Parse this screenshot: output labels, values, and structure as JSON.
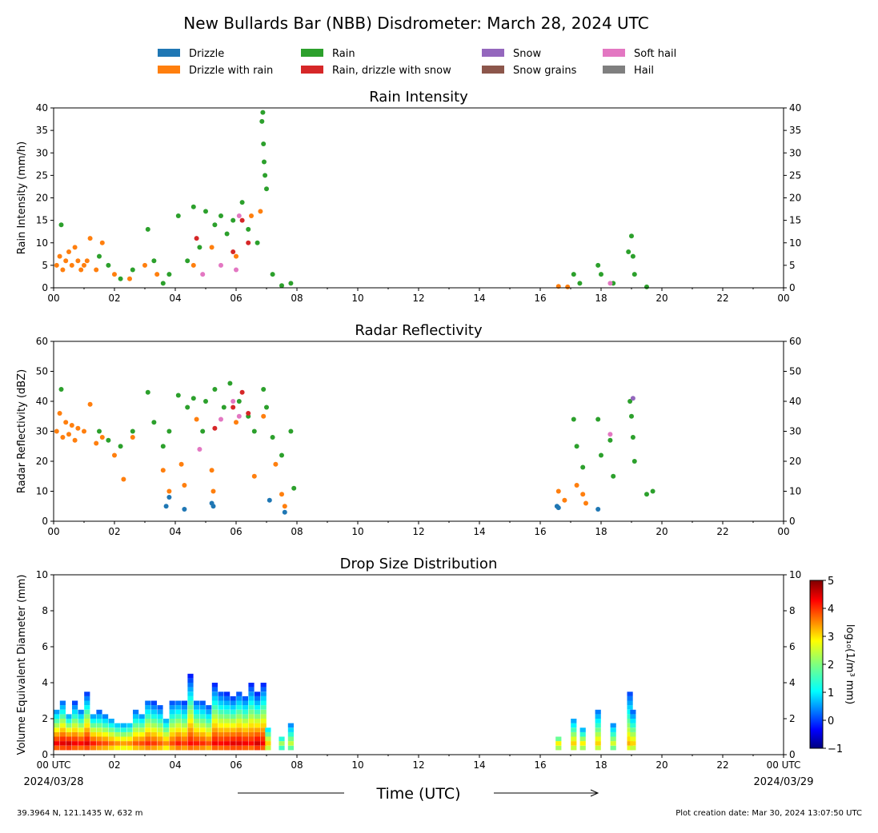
{
  "figure": {
    "title": "New Bullards Bar (NBB) Disdrometer: March 28, 2024 UTC",
    "xlabel": "Time (UTC)",
    "footer_left": "39.3964 N, 121.1435 W, 632 m",
    "footer_right": "Plot creation date: Mar 30, 2024 13:07:50 UTC",
    "date_start": "2024/03/28",
    "date_end": "2024/03/29"
  },
  "legend": [
    {
      "name": "Drizzle",
      "color": "#1f77b4"
    },
    {
      "name": "Drizzle with rain",
      "color": "#ff7f0e"
    },
    {
      "name": "Rain",
      "color": "#2ca02c"
    },
    {
      "name": "Rain, drizzle with snow",
      "color": "#d62728"
    },
    {
      "name": "Snow",
      "color": "#9467bd"
    },
    {
      "name": "Snow grains",
      "color": "#8c564b"
    },
    {
      "name": "Soft hail",
      "color": "#e377c2"
    },
    {
      "name": "Hail",
      "color": "#7f7f7f"
    }
  ],
  "x_ticks": [
    "00",
    "02",
    "04",
    "06",
    "08",
    "10",
    "12",
    "14",
    "16",
    "18",
    "20",
    "22",
    "00"
  ],
  "x_ticks_bottom": [
    "00 UTC",
    "02",
    "04",
    "06",
    "08",
    "10",
    "12",
    "14",
    "16",
    "18",
    "20",
    "22",
    "00 UTC"
  ],
  "chart_data": [
    {
      "type": "scatter",
      "title": "Rain Intensity",
      "ylabel": "Rain Intensity (mm/h)",
      "xlim": [
        0,
        24
      ],
      "ylim": [
        0,
        40
      ],
      "y_ticks": [
        0,
        5,
        10,
        15,
        20,
        25,
        30,
        35,
        40
      ],
      "legend_position": "top-center",
      "series": [
        {
          "name": "Drizzle with rain",
          "color": "#ff7f0e",
          "points": [
            [
              0.1,
              5
            ],
            [
              0.2,
              7
            ],
            [
              0.3,
              4
            ],
            [
              0.4,
              6
            ],
            [
              0.5,
              8
            ],
            [
              0.6,
              5
            ],
            [
              0.7,
              9
            ],
            [
              0.8,
              6
            ],
            [
              0.9,
              4
            ],
            [
              1.0,
              5
            ],
            [
              1.1,
              6
            ],
            [
              1.2,
              11
            ],
            [
              1.4,
              4
            ],
            [
              1.6,
              10
            ],
            [
              2.0,
              3
            ],
            [
              2.5,
              2
            ],
            [
              3.0,
              5
            ],
            [
              3.4,
              3
            ],
            [
              4.6,
              5
            ],
            [
              5.2,
              9
            ],
            [
              6.0,
              7
            ],
            [
              6.5,
              16
            ],
            [
              6.8,
              17
            ],
            [
              16.6,
              0.3
            ],
            [
              16.9,
              0.2
            ]
          ]
        },
        {
          "name": "Rain",
          "color": "#2ca02c",
          "points": [
            [
              0.25,
              14
            ],
            [
              1.5,
              7
            ],
            [
              1.8,
              5
            ],
            [
              2.2,
              2
            ],
            [
              2.6,
              4
            ],
            [
              3.1,
              13
            ],
            [
              3.3,
              6
            ],
            [
              3.6,
              1
            ],
            [
              3.8,
              3
            ],
            [
              4.1,
              16
            ],
            [
              4.4,
              6
            ],
            [
              4.6,
              18
            ],
            [
              4.8,
              9
            ],
            [
              5.0,
              17
            ],
            [
              5.3,
              14
            ],
            [
              5.5,
              16
            ],
            [
              5.7,
              12
            ],
            [
              5.9,
              15
            ],
            [
              6.2,
              19
            ],
            [
              6.4,
              13
            ],
            [
              6.7,
              10
            ],
            [
              6.85,
              37
            ],
            [
              6.88,
              39
            ],
            [
              6.9,
              32
            ],
            [
              6.92,
              28
            ],
            [
              6.95,
              25
            ],
            [
              7.0,
              22
            ],
            [
              7.2,
              3
            ],
            [
              7.5,
              0.5
            ],
            [
              7.8,
              1
            ],
            [
              17.1,
              3
            ],
            [
              17.3,
              1
            ],
            [
              17.9,
              5
            ],
            [
              18.0,
              3
            ],
            [
              18.4,
              1
            ],
            [
              18.9,
              8
            ],
            [
              19.0,
              11.5
            ],
            [
              19.05,
              7
            ],
            [
              19.1,
              3
            ],
            [
              19.5,
              0.2
            ]
          ]
        },
        {
          "name": "Rain, drizzle with snow",
          "color": "#d62728",
          "points": [
            [
              4.7,
              11
            ],
            [
              5.9,
              8
            ],
            [
              6.2,
              15
            ],
            [
              6.4,
              10
            ]
          ]
        },
        {
          "name": "Soft hail",
          "color": "#e377c2",
          "points": [
            [
              4.9,
              3
            ],
            [
              5.5,
              5
            ],
            [
              6.0,
              4
            ],
            [
              6.1,
              16
            ],
            [
              18.3,
              1
            ]
          ]
        }
      ]
    },
    {
      "type": "scatter",
      "title": "Radar Reflectivity",
      "ylabel": "Radar Reflectivity (dBZ)",
      "xlim": [
        0,
        24
      ],
      "ylim": [
        0,
        60
      ],
      "y_ticks": [
        0,
        10,
        20,
        30,
        40,
        50,
        60
      ],
      "series": [
        {
          "name": "Drizzle",
          "color": "#1f77b4",
          "points": [
            [
              3.7,
              5
            ],
            [
              3.8,
              8
            ],
            [
              4.3,
              4
            ],
            [
              5.2,
              6
            ],
            [
              5.25,
              5
            ],
            [
              7.1,
              7
            ],
            [
              7.6,
              3
            ],
            [
              16.55,
              5
            ],
            [
              16.6,
              4.5
            ],
            [
              17.9,
              4
            ]
          ]
        },
        {
          "name": "Drizzle with rain",
          "color": "#ff7f0e",
          "points": [
            [
              0.1,
              30
            ],
            [
              0.2,
              36
            ],
            [
              0.3,
              28
            ],
            [
              0.4,
              33
            ],
            [
              0.5,
              29
            ],
            [
              0.6,
              32
            ],
            [
              0.7,
              27
            ],
            [
              0.8,
              31
            ],
            [
              1.0,
              30
            ],
            [
              1.2,
              39
            ],
            [
              1.4,
              26
            ],
            [
              1.6,
              28
            ],
            [
              2.0,
              22
            ],
            [
              2.3,
              14
            ],
            [
              2.6,
              28
            ],
            [
              3.6,
              17
            ],
            [
              3.8,
              10
            ],
            [
              4.2,
              19
            ],
            [
              4.3,
              12
            ],
            [
              4.7,
              34
            ],
            [
              5.2,
              17
            ],
            [
              5.25,
              10
            ],
            [
              6.0,
              33
            ],
            [
              6.6,
              15
            ],
            [
              6.9,
              35
            ],
            [
              7.3,
              19
            ],
            [
              7.5,
              9
            ],
            [
              7.6,
              5
            ],
            [
              16.6,
              10
            ],
            [
              16.8,
              7
            ],
            [
              17.2,
              12
            ],
            [
              17.4,
              9
            ],
            [
              17.5,
              6
            ]
          ]
        },
        {
          "name": "Rain",
          "color": "#2ca02c",
          "points": [
            [
              0.25,
              44
            ],
            [
              1.5,
              30
            ],
            [
              1.8,
              27
            ],
            [
              2.2,
              25
            ],
            [
              2.6,
              30
            ],
            [
              3.1,
              43
            ],
            [
              3.3,
              33
            ],
            [
              3.6,
              25
            ],
            [
              3.8,
              30
            ],
            [
              4.1,
              42
            ],
            [
              4.4,
              38
            ],
            [
              4.6,
              41
            ],
            [
              4.9,
              30
            ],
            [
              5.0,
              40
            ],
            [
              5.3,
              44
            ],
            [
              5.6,
              38
            ],
            [
              5.8,
              46
            ],
            [
              6.1,
              40
            ],
            [
              6.4,
              35
            ],
            [
              6.6,
              30
            ],
            [
              6.9,
              44
            ],
            [
              7.0,
              38
            ],
            [
              7.2,
              28
            ],
            [
              7.5,
              22
            ],
            [
              7.8,
              30
            ],
            [
              7.9,
              11
            ],
            [
              17.1,
              34
            ],
            [
              17.2,
              25
            ],
            [
              17.4,
              18
            ],
            [
              17.9,
              34
            ],
            [
              18.0,
              22
            ],
            [
              18.3,
              27
            ],
            [
              18.4,
              15
            ],
            [
              18.95,
              40
            ],
            [
              19.0,
              35
            ],
            [
              19.05,
              28
            ],
            [
              19.1,
              20
            ],
            [
              19.5,
              9
            ],
            [
              19.7,
              10
            ]
          ]
        },
        {
          "name": "Rain, drizzle with snow",
          "color": "#d62728",
          "points": [
            [
              5.3,
              31
            ],
            [
              5.9,
              38
            ],
            [
              6.2,
              43
            ],
            [
              6.4,
              36
            ]
          ]
        },
        {
          "name": "Soft hail",
          "color": "#e377c2",
          "points": [
            [
              4.8,
              24
            ],
            [
              5.5,
              34
            ],
            [
              5.9,
              40
            ],
            [
              6.1,
              35
            ],
            [
              18.3,
              29
            ]
          ]
        },
        {
          "name": "Snow",
          "color": "#9467bd",
          "points": [
            [
              19.05,
              41
            ]
          ]
        }
      ]
    },
    {
      "type": "heatmap",
      "title": "Drop Size Distribution",
      "ylabel": "Volume Equivalent Diameter (mm)",
      "xlim": [
        0,
        24
      ],
      "ylim": [
        0,
        10
      ],
      "y_ticks": [
        0,
        2,
        4,
        6,
        8,
        10
      ],
      "colorbar": {
        "label": "log₁₀(1/m³ mm)",
        "range": [
          -1,
          5
        ],
        "ticks": [
          -1,
          0,
          1,
          2,
          3,
          4,
          5
        ]
      },
      "columns": [
        {
          "x": 0.1,
          "top": 2.5,
          "peak": 4.3
        },
        {
          "x": 0.3,
          "top": 3.0,
          "peak": 4.4
        },
        {
          "x": 0.5,
          "top": 2.2,
          "peak": 4.5
        },
        {
          "x": 0.7,
          "top": 2.8,
          "peak": 4.3
        },
        {
          "x": 0.9,
          "top": 2.4,
          "peak": 4.2
        },
        {
          "x": 1.1,
          "top": 3.4,
          "peak": 4.4
        },
        {
          "x": 1.3,
          "top": 2.2,
          "peak": 4.1
        },
        {
          "x": 1.5,
          "top": 2.3,
          "peak": 3.9
        },
        {
          "x": 1.7,
          "top": 2.1,
          "peak": 3.8
        },
        {
          "x": 1.9,
          "top": 1.9,
          "peak": 3.6
        },
        {
          "x": 2.1,
          "top": 1.7,
          "peak": 3.4
        },
        {
          "x": 2.3,
          "top": 1.6,
          "peak": 3.3
        },
        {
          "x": 2.5,
          "top": 1.7,
          "peak": 3.4
        },
        {
          "x": 2.7,
          "top": 2.4,
          "peak": 3.7
        },
        {
          "x": 2.9,
          "top": 2.2,
          "peak": 3.8
        },
        {
          "x": 3.1,
          "top": 3.0,
          "peak": 4.0
        },
        {
          "x": 3.3,
          "top": 2.8,
          "peak": 3.9
        },
        {
          "x": 3.5,
          "top": 2.6,
          "peak": 3.7
        },
        {
          "x": 3.7,
          "top": 2.0,
          "peak": 3.4
        },
        {
          "x": 3.9,
          "top": 2.9,
          "peak": 3.8
        },
        {
          "x": 4.1,
          "top": 3.0,
          "peak": 4.1
        },
        {
          "x": 4.3,
          "top": 2.8,
          "peak": 3.9
        },
        {
          "x": 4.5,
          "top": 4.4,
          "peak": 4.2
        },
        {
          "x": 4.7,
          "top": 3.0,
          "peak": 4.1
        },
        {
          "x": 4.9,
          "top": 2.9,
          "peak": 4.0
        },
        {
          "x": 5.1,
          "top": 2.6,
          "peak": 3.8
        },
        {
          "x": 5.3,
          "top": 3.9,
          "peak": 4.3
        },
        {
          "x": 5.5,
          "top": 3.5,
          "peak": 4.2
        },
        {
          "x": 5.7,
          "top": 3.3,
          "peak": 4.3
        },
        {
          "x": 5.9,
          "top": 3.1,
          "peak": 4.4
        },
        {
          "x": 6.1,
          "top": 3.5,
          "peak": 4.4
        },
        {
          "x": 6.3,
          "top": 3.2,
          "peak": 4.3
        },
        {
          "x": 6.5,
          "top": 3.9,
          "peak": 4.2
        },
        {
          "x": 6.7,
          "top": 3.3,
          "peak": 4.5
        },
        {
          "x": 6.9,
          "top": 3.9,
          "peak": 4.3
        },
        {
          "x": 7.05,
          "top": 1.5,
          "peak": 3.0
        },
        {
          "x": 7.5,
          "top": 0.9,
          "peak": 2.2
        },
        {
          "x": 7.8,
          "top": 1.6,
          "peak": 2.4
        },
        {
          "x": 16.6,
          "top": 0.9,
          "peak": 2.8
        },
        {
          "x": 17.1,
          "top": 2.0,
          "peak": 3.0
        },
        {
          "x": 17.4,
          "top": 1.3,
          "peak": 2.8
        },
        {
          "x": 17.9,
          "top": 2.5,
          "peak": 3.0
        },
        {
          "x": 18.4,
          "top": 1.6,
          "peak": 2.5
        },
        {
          "x": 18.95,
          "top": 3.5,
          "peak": 3.2
        },
        {
          "x": 19.05,
          "top": 2.4,
          "peak": 3.0
        }
      ]
    }
  ]
}
